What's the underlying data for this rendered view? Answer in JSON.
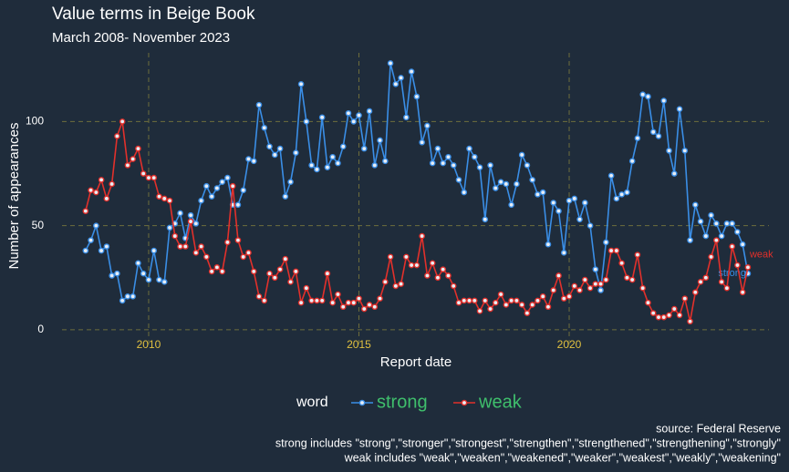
{
  "chart_data": {
    "type": "line",
    "title": "Value terms in Beige Book",
    "subtitle": "March 2008- November 2023",
    "x_label": "Report date",
    "y_label": "Number of appearances",
    "legend_title": "word",
    "caption": [
      "source: Federal Reserve",
      "strong includes \"strong\",\"stronger\",\"strongest\",\"strengthen\",\"strengthened\",\"strengthening\",\"strongly\"",
      "weak includes  \"weak\",\"weaken\",\"weakened\",\"weaker\",\"weakest\",\"weakly\",\"weakening\""
    ],
    "xlim": [
      2007.94,
      2024.75
    ],
    "xticks": [
      2010,
      2015,
      2020
    ],
    "ylim": [
      -8.8,
      133
    ],
    "yticks": [
      0,
      50,
      100
    ],
    "grid": true,
    "legend": "bottom",
    "x": [
      2008.5,
      2008.625,
      2008.75,
      2008.875,
      2009,
      2009.125,
      2009.25,
      2009.375,
      2009.5,
      2009.625,
      2009.75,
      2009.875,
      2010,
      2010.125,
      2010.25,
      2010.375,
      2010.5,
      2010.625,
      2010.75,
      2010.875,
      2011,
      2011.125,
      2011.25,
      2011.375,
      2011.5,
      2011.625,
      2011.75,
      2011.875,
      2012,
      2012.125,
      2012.25,
      2012.375,
      2012.5,
      2012.625,
      2012.75,
      2012.875,
      2013,
      2013.125,
      2013.25,
      2013.375,
      2013.5,
      2013.625,
      2013.75,
      2013.875,
      2014,
      2014.125,
      2014.25,
      2014.375,
      2014.5,
      2014.625,
      2014.75,
      2014.875,
      2015,
      2015.125,
      2015.25,
      2015.375,
      2015.5,
      2015.625,
      2015.75,
      2015.875,
      2016,
      2016.125,
      2016.25,
      2016.375,
      2016.5,
      2016.625,
      2016.75,
      2016.875,
      2017,
      2017.125,
      2017.25,
      2017.375,
      2017.5,
      2017.625,
      2017.75,
      2017.875,
      2018,
      2018.125,
      2018.25,
      2018.375,
      2018.5,
      2018.625,
      2018.75,
      2018.875,
      2019,
      2019.125,
      2019.25,
      2019.375,
      2019.5,
      2019.625,
      2019.75,
      2019.875,
      2020,
      2020.125,
      2020.25,
      2020.375,
      2020.5,
      2020.625,
      2020.75,
      2020.875,
      2021,
      2021.125,
      2021.25,
      2021.375,
      2021.5,
      2021.625,
      2021.75,
      2021.875,
      2022,
      2022.125,
      2022.25,
      2022.375,
      2022.5,
      2022.625,
      2022.75,
      2022.875,
      2023,
      2023.125,
      2023.25,
      2023.375,
      2023.5,
      2023.625,
      2023.75,
      2023.875,
      2024,
      2024.125,
      2024.25
    ],
    "series": [
      {
        "name": "strong",
        "color": "#3a8ee6",
        "values": [
          38,
          43,
          50,
          38,
          40,
          26,
          27,
          14,
          16,
          16,
          32,
          27,
          24,
          38,
          24,
          23,
          49,
          51,
          56,
          44,
          55,
          51,
          62,
          69,
          64,
          68,
          71,
          73,
          60,
          60,
          67,
          82,
          81,
          108,
          97,
          88,
          84,
          87,
          64,
          71,
          85,
          118,
          100,
          79,
          77,
          102,
          78,
          83,
          80,
          88,
          104,
          100,
          103,
          87,
          105,
          79,
          91,
          81,
          128,
          118,
          121,
          102,
          124,
          112,
          90,
          98,
          80,
          87,
          80,
          83,
          79,
          72,
          66,
          87,
          83,
          78,
          53,
          79,
          68,
          71,
          70,
          60,
          70,
          84,
          79,
          72,
          65,
          66,
          41,
          61,
          57,
          37,
          62,
          63,
          53,
          61,
          50,
          29,
          19,
          42,
          74,
          63,
          65,
          66,
          81,
          92,
          113,
          112,
          95,
          93,
          110,
          86,
          75,
          106,
          86,
          43,
          60,
          52,
          45,
          55,
          51,
          45,
          51,
          51,
          47,
          41,
          27
        ]
      },
      {
        "name": "weak",
        "color": "#e2302b",
        "values": [
          57,
          67,
          66,
          72,
          63,
          70,
          93,
          100,
          79,
          82,
          87,
          75,
          73,
          73,
          64,
          63,
          62,
          45,
          40,
          40,
          52,
          37,
          40,
          35,
          28,
          30,
          28,
          42,
          69,
          43,
          35,
          37,
          28,
          16,
          14,
          27,
          25,
          29,
          34,
          23,
          28,
          13,
          20,
          14,
          14,
          14,
          27,
          13,
          17,
          11,
          13,
          13,
          15,
          10,
          12,
          11,
          15,
          23,
          35,
          21,
          22,
          35,
          31,
          31,
          45,
          26,
          32,
          25,
          29,
          26,
          21,
          13,
          14,
          14,
          14,
          9,
          14,
          10,
          13,
          17,
          12,
          14,
          14,
          12,
          8,
          12,
          14,
          16,
          11,
          19,
          26,
          15,
          16,
          21,
          19,
          24,
          20,
          22,
          22,
          24,
          38,
          38,
          32,
          25,
          24,
          36,
          20,
          13,
          8,
          6,
          6,
          7,
          10,
          7,
          15,
          4,
          18,
          23,
          25,
          35,
          43,
          23,
          20,
          40,
          31,
          18,
          30
        ]
      }
    ]
  }
}
